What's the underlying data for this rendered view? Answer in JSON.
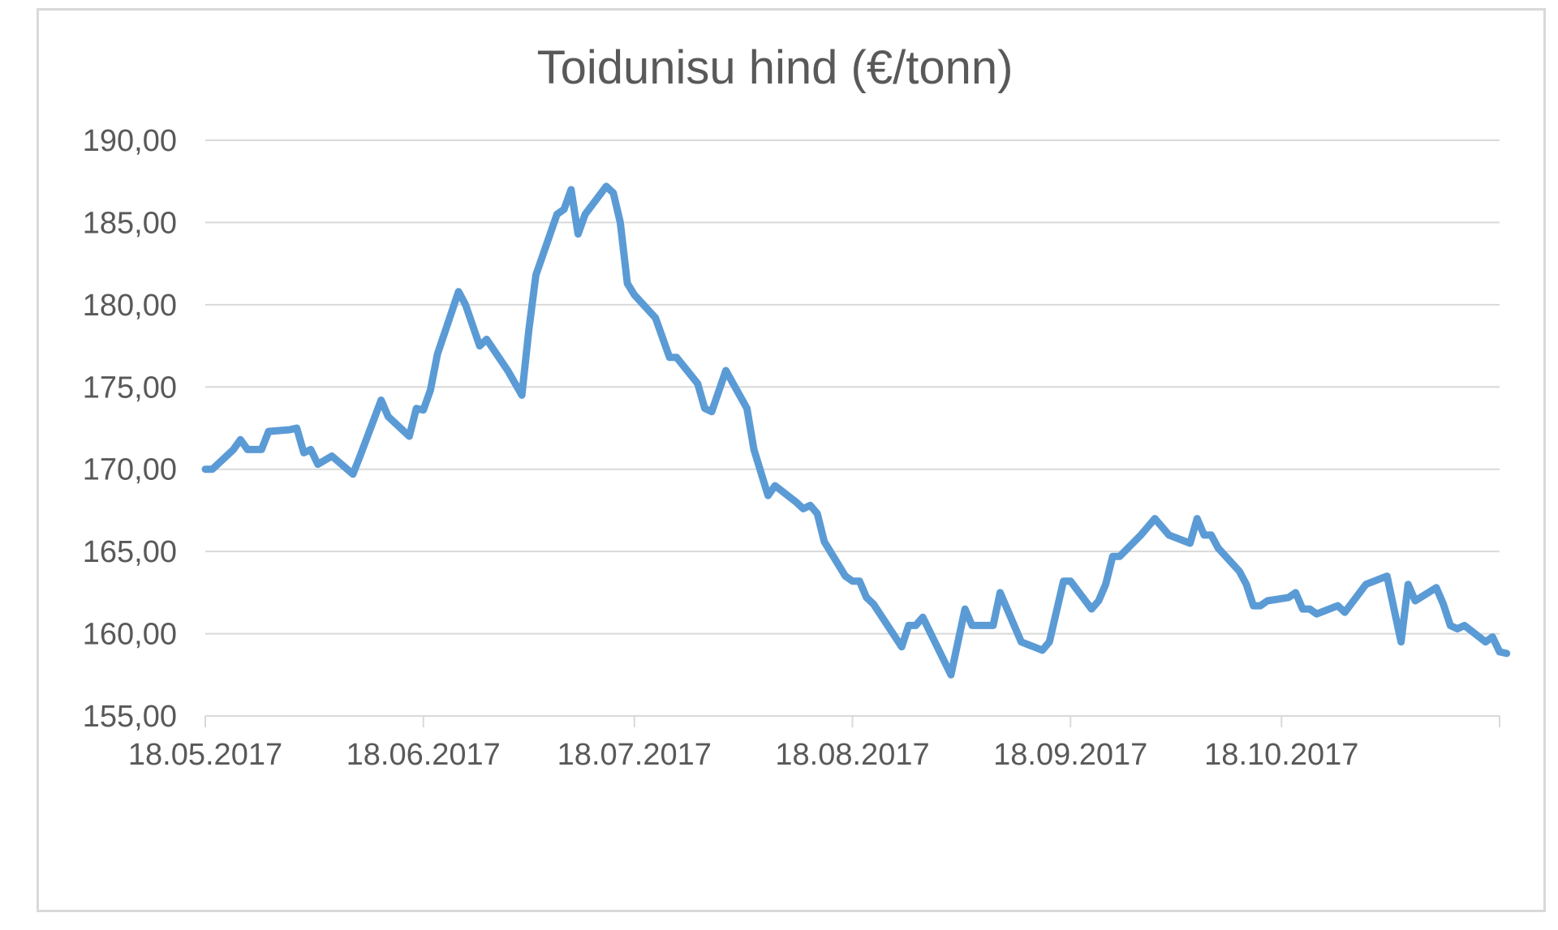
{
  "chart_data": {
    "type": "line",
    "title": "Toidunisu hind (€/tonn)",
    "xlabel": "",
    "ylabel": "",
    "ylim": [
      155,
      190
    ],
    "yticks": [
      "155,00",
      "160,00",
      "165,00",
      "170,00",
      "175,00",
      "180,00",
      "185,00",
      "190,00"
    ],
    "xlim": [
      "2017-05-18",
      "2017-11-18"
    ],
    "xticks": [
      {
        "date": "2017-05-18",
        "label": "18.05.2017"
      },
      {
        "date": "2017-06-18",
        "label": "18.06.2017"
      },
      {
        "date": "2017-07-18",
        "label": "18.07.2017"
      },
      {
        "date": "2017-08-18",
        "label": "18.08.2017"
      },
      {
        "date": "2017-09-18",
        "label": "18.09.2017"
      },
      {
        "date": "2017-10-18",
        "label": "18.10.2017"
      }
    ],
    "grid": true,
    "legend": "none",
    "series_color": "#5b9bd5",
    "series": [
      {
        "points": [
          [
            "2017-05-18",
            170.0
          ],
          [
            "2017-05-19",
            170.0
          ],
          [
            "2017-05-22",
            171.2
          ],
          [
            "2017-05-23",
            171.8
          ],
          [
            "2017-05-24",
            171.2
          ],
          [
            "2017-05-26",
            171.2
          ],
          [
            "2017-05-27",
            172.3
          ],
          [
            "2017-05-30",
            172.4
          ],
          [
            "2017-05-31",
            172.5
          ],
          [
            "2017-06-01",
            171.0
          ],
          [
            "2017-06-02",
            171.2
          ],
          [
            "2017-06-03",
            170.3
          ],
          [
            "2017-06-05",
            170.8
          ],
          [
            "2017-06-08",
            169.7
          ],
          [
            "2017-06-09",
            170.8
          ],
          [
            "2017-06-12",
            174.2
          ],
          [
            "2017-06-13",
            173.2
          ],
          [
            "2017-06-16",
            172.0
          ],
          [
            "2017-06-17",
            173.7
          ],
          [
            "2017-06-18",
            173.6
          ],
          [
            "2017-06-19",
            174.8
          ],
          [
            "2017-06-20",
            177.0
          ],
          [
            "2017-06-23",
            180.8
          ],
          [
            "2017-06-24",
            180.0
          ],
          [
            "2017-06-26",
            177.5
          ],
          [
            "2017-06-27",
            177.9
          ],
          [
            "2017-06-30",
            176.0
          ],
          [
            "2017-07-02",
            174.5
          ],
          [
            "2017-07-03",
            178.5
          ],
          [
            "2017-07-04",
            181.8
          ],
          [
            "2017-07-07",
            185.5
          ],
          [
            "2017-07-08",
            185.8
          ],
          [
            "2017-07-09",
            187.0
          ],
          [
            "2017-07-10",
            184.3
          ],
          [
            "2017-07-11",
            185.5
          ],
          [
            "2017-07-14",
            187.2
          ],
          [
            "2017-07-15",
            186.8
          ],
          [
            "2017-07-16",
            185.0
          ],
          [
            "2017-07-17",
            181.3
          ],
          [
            "2017-07-18",
            180.6
          ],
          [
            "2017-07-21",
            179.2
          ],
          [
            "2017-07-23",
            176.8
          ],
          [
            "2017-07-24",
            176.8
          ],
          [
            "2017-07-27",
            175.2
          ],
          [
            "2017-07-28",
            173.7
          ],
          [
            "2017-07-29",
            173.5
          ],
          [
            "2017-07-31",
            176.0
          ],
          [
            "2017-08-03",
            173.7
          ],
          [
            "2017-08-04",
            171.2
          ],
          [
            "2017-08-06",
            168.4
          ],
          [
            "2017-08-07",
            169.0
          ],
          [
            "2017-08-10",
            168.0
          ],
          [
            "2017-08-11",
            167.6
          ],
          [
            "2017-08-12",
            167.8
          ],
          [
            "2017-08-13",
            167.3
          ],
          [
            "2017-08-14",
            165.6
          ],
          [
            "2017-08-17",
            163.5
          ],
          [
            "2017-08-18",
            163.2
          ],
          [
            "2017-08-19",
            163.2
          ],
          [
            "2017-08-20",
            162.2
          ],
          [
            "2017-08-21",
            161.8
          ],
          [
            "2017-08-25",
            159.2
          ],
          [
            "2017-08-26",
            160.5
          ],
          [
            "2017-08-27",
            160.5
          ],
          [
            "2017-08-28",
            161.0
          ],
          [
            "2017-09-01",
            157.5
          ],
          [
            "2017-09-03",
            161.5
          ],
          [
            "2017-09-04",
            160.5
          ],
          [
            "2017-09-07",
            160.5
          ],
          [
            "2017-09-08",
            162.5
          ],
          [
            "2017-09-11",
            159.5
          ],
          [
            "2017-09-14",
            159.0
          ],
          [
            "2017-09-15",
            159.5
          ],
          [
            "2017-09-17",
            163.2
          ],
          [
            "2017-09-18",
            163.2
          ],
          [
            "2017-09-21",
            161.5
          ],
          [
            "2017-09-22",
            162.0
          ],
          [
            "2017-09-23",
            163.0
          ],
          [
            "2017-09-24",
            164.7
          ],
          [
            "2017-09-25",
            164.7
          ],
          [
            "2017-09-28",
            166.0
          ],
          [
            "2017-09-30",
            167.0
          ],
          [
            "2017-10-02",
            166.0
          ],
          [
            "2017-10-05",
            165.5
          ],
          [
            "2017-10-06",
            167.0
          ],
          [
            "2017-10-07",
            166.0
          ],
          [
            "2017-10-08",
            166.0
          ],
          [
            "2017-10-09",
            165.2
          ],
          [
            "2017-10-12",
            163.8
          ],
          [
            "2017-10-13",
            163.0
          ],
          [
            "2017-10-14",
            161.7
          ],
          [
            "2017-10-15",
            161.7
          ],
          [
            "2017-10-16",
            162.0
          ],
          [
            "2017-10-19",
            162.2
          ],
          [
            "2017-10-20",
            162.5
          ],
          [
            "2017-10-21",
            161.5
          ],
          [
            "2017-10-22",
            161.5
          ],
          [
            "2017-10-23",
            161.2
          ],
          [
            "2017-10-26",
            161.7
          ],
          [
            "2017-10-27",
            161.3
          ],
          [
            "2017-10-30",
            163.0
          ],
          [
            "2017-11-02",
            163.5
          ],
          [
            "2017-11-04",
            159.5
          ],
          [
            "2017-11-05",
            163.0
          ],
          [
            "2017-11-06",
            162.0
          ],
          [
            "2017-11-09",
            162.8
          ],
          [
            "2017-11-10",
            161.8
          ],
          [
            "2017-11-11",
            160.5
          ],
          [
            "2017-11-12",
            160.3
          ],
          [
            "2017-11-13",
            160.5
          ],
          [
            "2017-11-16",
            159.5
          ],
          [
            "2017-11-17",
            159.8
          ],
          [
            "2017-11-18",
            158.9
          ],
          [
            "2017-11-19",
            158.8
          ]
        ]
      }
    ]
  }
}
